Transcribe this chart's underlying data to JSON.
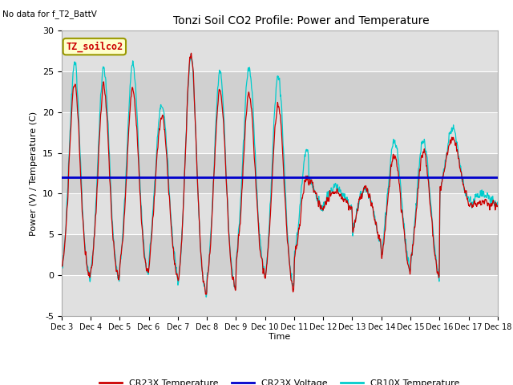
{
  "title": "Tonzi Soil CO2 Profile: Power and Temperature",
  "subtitle": "No data for f_T2_BattV",
  "ylabel": "Power (V) / Temperature (C)",
  "xlabel": "Time",
  "ylim": [
    -5,
    30
  ],
  "yticks": [
    -5,
    0,
    5,
    10,
    15,
    20,
    25,
    30
  ],
  "xlim": [
    0,
    15
  ],
  "n_days": 15,
  "xtick_positions": [
    0,
    1,
    2,
    3,
    4,
    5,
    6,
    7,
    8,
    9,
    10,
    11,
    12,
    13,
    14,
    15
  ],
  "xtick_labels": [
    "Dec 3",
    "Dec 4",
    "Dec 5",
    "Dec 6",
    "Dec 7",
    "Dec 8",
    "Dec 9",
    "Dec 10",
    "Dec 11",
    "Dec 12",
    "Dec 13",
    "Dec 14",
    "Dec 15",
    "Dec 16",
    "Dec 17",
    "Dec 18"
  ],
  "voltage_value": 12.0,
  "annotation_box": "TZ_soilco2",
  "plot_bg_color": "#e8e8e8",
  "stripe_color": "#d8d8d8",
  "cr23x_color": "#cc0000",
  "cr10x_color": "#00cccc",
  "voltage_color": "#0000cc",
  "legend_entries": [
    "CR23X Temperature",
    "CR23X Voltage",
    "CR10X Temperature"
  ]
}
